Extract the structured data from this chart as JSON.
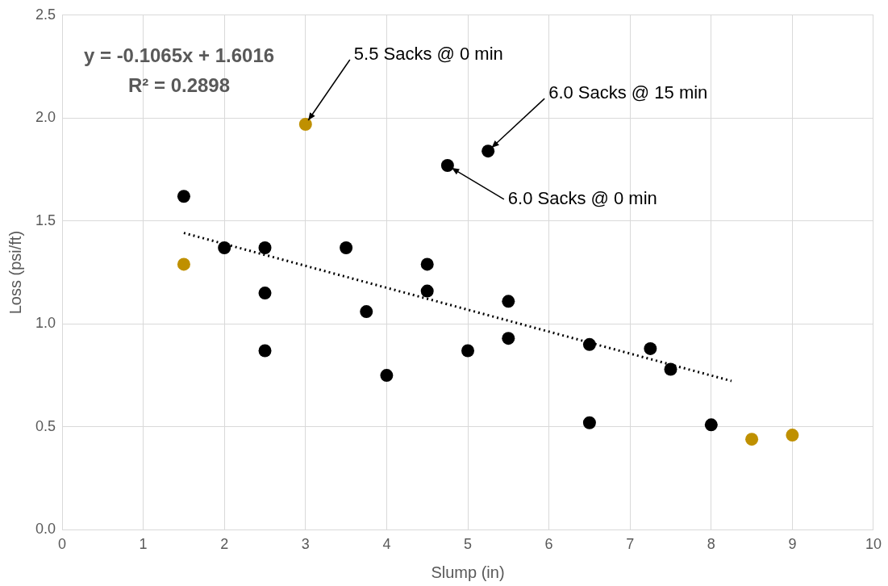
{
  "chart_data": {
    "type": "scatter",
    "xlabel": "Slump (in)",
    "ylabel": "Loss (psi/ft)",
    "xlim": [
      0,
      10
    ],
    "xticks": [
      0,
      1,
      2,
      3,
      4,
      5,
      6,
      7,
      8,
      9,
      10
    ],
    "ylim": [
      0,
      2.5
    ],
    "yticks": [
      {
        "value": 0,
        "label": "0.0"
      },
      0.5,
      {
        "value": 1,
        "label": "1.0"
      },
      1.5,
      {
        "value": 2,
        "label": "2.0"
      },
      2.5
    ],
    "grid": true,
    "legend": false,
    "marker": "circle",
    "series": [
      {
        "type": "scatter",
        "color": "#000000",
        "x": [
          1.5,
          2,
          2.5,
          2.5,
          2.5,
          3.5,
          3.75,
          4,
          4.5,
          4.5,
          4.75,
          5,
          5.25,
          5.5,
          5.5,
          6.5,
          6.5,
          7.25,
          7.5,
          8
        ],
        "values": [
          1.62,
          1.37,
          1.37,
          1.15,
          0.87,
          1.37,
          1.06,
          0.75,
          1.29,
          1.16,
          1.77,
          0.87,
          1.84,
          1.11,
          0.93,
          0.9,
          0.52,
          0.88,
          0.78,
          0.51
        ]
      },
      {
        "type": "scatter",
        "color": "#bf9000",
        "x": [
          1.5,
          3,
          8.5,
          9
        ],
        "values": [
          1.29,
          1.97,
          0.44,
          0.46
        ]
      },
      {
        "type": "line",
        "color": "#000000",
        "line_style": "dotted",
        "marker": "none",
        "x": [
          1.5,
          8.25
        ],
        "values": [
          1.442,
          0.723
        ]
      }
    ],
    "annotations": [
      "y = -0.1065x + 1.6016",
      "R² = 0.2898",
      {
        "text": "5.5 Sacks @ 0 min",
        "x": 3,
        "y": 1.97
      },
      {
        "text": "6.0 Sacks @ 15 min",
        "x": 5.25,
        "y": 1.84
      },
      {
        "text": "6.0 Sacks @ 0 min",
        "x": 4.75,
        "y": 1.77
      }
    ]
  }
}
